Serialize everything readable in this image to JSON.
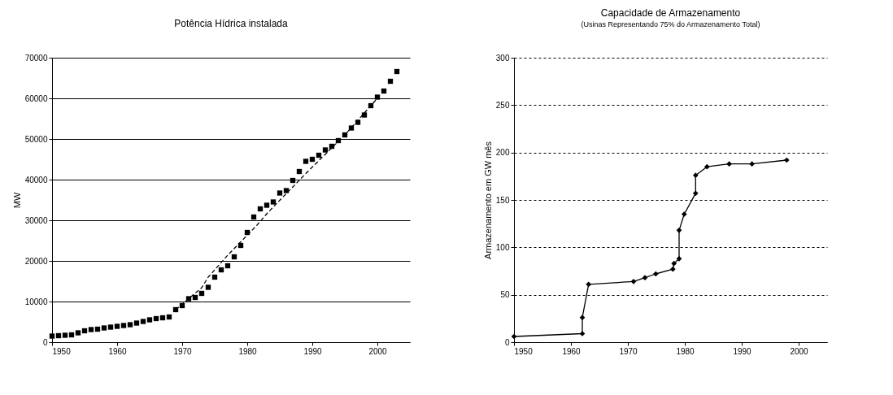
{
  "chart_data": [
    {
      "type": "scatter",
      "title": "Potência Hídrica instalada",
      "ylabel": "MW",
      "xlim": [
        1950,
        2005
      ],
      "xticks": [
        1950,
        1960,
        1970,
        1980,
        1990,
        2000
      ],
      "ylim": [
        0,
        70000
      ],
      "yticks": [
        0,
        10000,
        20000,
        30000,
        40000,
        50000,
        60000,
        70000
      ],
      "grid": "y",
      "marker": "square",
      "series": [
        {
          "color": "#000000",
          "x": [
            1950,
            1951,
            1952,
            1953,
            1954,
            1955,
            1956,
            1957,
            1958,
            1959,
            1960,
            1961,
            1962,
            1963,
            1964,
            1965,
            1966,
            1967,
            1968,
            1969,
            1970,
            1971,
            1972,
            1973,
            1974,
            1975,
            1976,
            1977,
            1978,
            1979,
            1980,
            1981,
            1982,
            1983,
            1984,
            1985,
            1986,
            1987,
            1988,
            1989,
            1990,
            1991,
            1992,
            1993,
            1994,
            1995,
            1996,
            1997,
            1998,
            1999,
            2000,
            2001,
            2002,
            2003
          ],
          "values": [
            1500,
            1600,
            1700,
            1800,
            2300,
            2800,
            3100,
            3200,
            3500,
            3700,
            3900,
            4100,
            4300,
            4700,
            5100,
            5500,
            5800,
            6000,
            6200,
            8000,
            9000,
            10700,
            11000,
            12000,
            13500,
            16000,
            17800,
            18800,
            21000,
            23800,
            27000,
            30800,
            32800,
            33700,
            34500,
            36700,
            37300,
            39800,
            42000,
            44500,
            45000,
            46000,
            47300,
            48200,
            49600,
            51000,
            52700,
            54100,
            55900,
            58200,
            60300,
            61800,
            64200,
            66600
          ]
        },
        {
          "type": "line",
          "line_style": "dashed",
          "marker": "none",
          "color": "#000000",
          "x": [
            1969,
            1973,
            1974,
            1977,
            1981.5,
            1983,
            1989,
            1995,
            2000
          ],
          "values": [
            8000,
            13400,
            16000,
            21400,
            28800,
            31600,
            41500,
            51000,
            60000
          ]
        }
      ]
    },
    {
      "type": "line",
      "title": "Capacidade de Armazenamento",
      "subtitle": "(Usinas Representando 75% do Armazenamento Total)",
      "ylabel": "Armazenamento em GW mês",
      "xlim": [
        1950,
        2005
      ],
      "xticks": [
        1950,
        1960,
        1970,
        1980,
        1990,
        2000
      ],
      "ylim": [
        0,
        300
      ],
      "yticks": [
        0,
        50,
        100,
        150,
        200,
        250,
        300
      ],
      "grid": "y",
      "marker": "diamond",
      "series": [
        {
          "color": "#000000",
          "x": [
            1950,
            1962,
            1962,
            1963.1,
            1971,
            1973,
            1974.9,
            1977.9,
            1978.1,
            1979,
            1979,
            1979.9,
            1981.9,
            1981.9,
            1983.9,
            1987.8,
            1991.8,
            1997.9
          ],
          "values": [
            6,
            9,
            26,
            61,
            64,
            68,
            72,
            77,
            83,
            88,
            118,
            135,
            157,
            176,
            185,
            188,
            188,
            192
          ]
        }
      ]
    }
  ]
}
